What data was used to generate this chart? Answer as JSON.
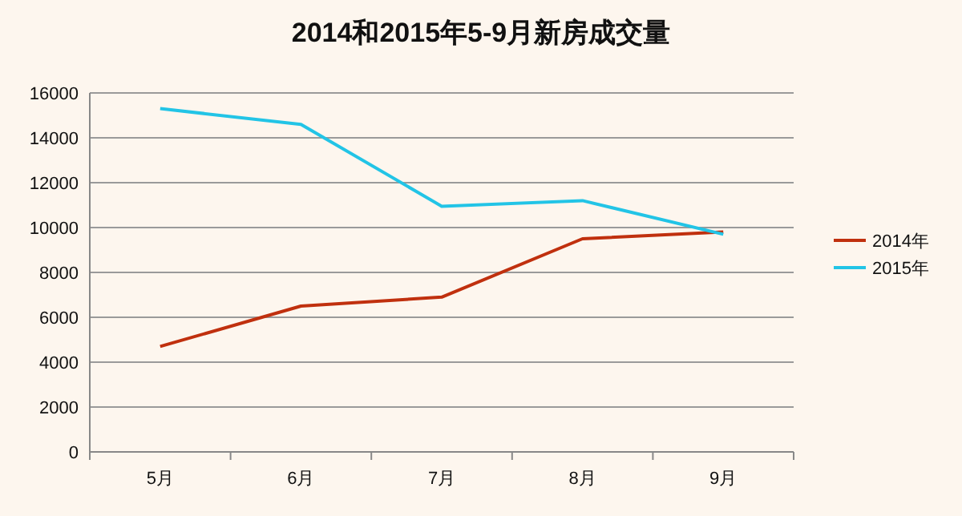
{
  "chart_data": {
    "type": "line",
    "title": "2014和2015年5-9月新房成交量",
    "categories": [
      "5月",
      "6月",
      "7月",
      "8月",
      "9月"
    ],
    "series": [
      {
        "name": "2014年",
        "color": "#c0300e",
        "values": [
          4700,
          6500,
          6900,
          9500,
          9800
        ]
      },
      {
        "name": "2015年",
        "color": "#22c4e6",
        "values": [
          15300,
          14600,
          10950,
          11200,
          9700
        ]
      }
    ],
    "ylim": [
      0,
      16000
    ],
    "yticks": [
      0,
      2000,
      4000,
      6000,
      8000,
      10000,
      12000,
      14000,
      16000
    ],
    "grid": "y",
    "legend": "right",
    "marker": "none"
  }
}
